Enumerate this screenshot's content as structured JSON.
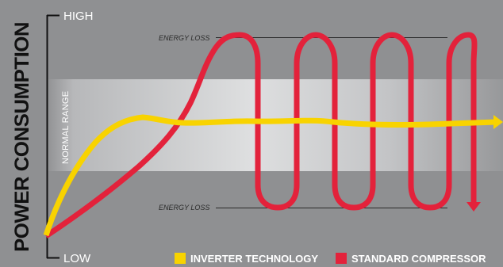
{
  "axis": {
    "title": "POWER CONSUMPTION",
    "high_label": "HIGH",
    "low_label": "LOW"
  },
  "band": {
    "label": "NORMAL RANGE"
  },
  "energy_loss": {
    "top_label": "ENERGY LOSS",
    "bottom_label": "ENERGY LOSS"
  },
  "legend": {
    "inverter_label": "INVERTER TECHNOLOGY",
    "standard_label": "STANDARD COMPRESSOR"
  },
  "colors": {
    "background": "#8f9092",
    "inverter": "#f8d300",
    "standard": "#e3223b",
    "axis_title": "#111111",
    "band": "#d7d8d9"
  },
  "icons": {
    "inverter_arrow": "arrow-right-icon",
    "standard_arrow": "arrow-down-icon"
  }
}
